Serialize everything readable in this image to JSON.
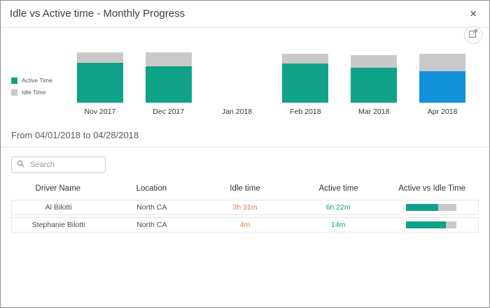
{
  "dialog": {
    "title": "Idle vs Active time - Monthly Progress",
    "close_label": "×"
  },
  "colors": {
    "active": "#10a287",
    "idle": "#c9c9c9",
    "selected": "#1191da",
    "idle_text": "#e0784b",
    "active_text": "#10a287"
  },
  "chart": {
    "legend": [
      {
        "label": "Active Time",
        "swatch": "active"
      },
      {
        "label": "Idle Time",
        "swatch": "idle"
      }
    ]
  },
  "chart_data": {
    "type": "bar",
    "stacked": true,
    "categories": [
      "Nov 2017",
      "Dec 2017",
      "Jan 2018",
      "Feb 2018",
      "Mar 2018",
      "Apr 2018"
    ],
    "series": [
      {
        "name": "Active Time",
        "values": [
          57,
          52,
          0,
          56,
          50,
          45
        ]
      },
      {
        "name": "Idle Time",
        "values": [
          15,
          20,
          0,
          14,
          18,
          25
        ]
      }
    ],
    "selected_category": "Apr 2018",
    "title": "Idle vs Active time - Monthly Progress",
    "xlabel": "",
    "ylabel": "",
    "ylim": [
      0,
      80
    ],
    "legend_position": "left",
    "grid": false
  },
  "filter": {
    "range_label": "From 04/01/2018 to 04/28/2018"
  },
  "search": {
    "placeholder": "Search",
    "value": ""
  },
  "table": {
    "columns": [
      "Driver Name",
      "Location",
      "Idle time",
      "Active time",
      "Active vs Idle Time"
    ],
    "rows": [
      {
        "driver": "Al Bilotti",
        "location": "North CA",
        "idle": "3h 31m",
        "active": "6h 22m",
        "active_pct": 64
      },
      {
        "driver": "Stephanie Bilotti",
        "location": "North CA",
        "idle": "4m",
        "active": "14m",
        "active_pct": 78
      }
    ]
  }
}
